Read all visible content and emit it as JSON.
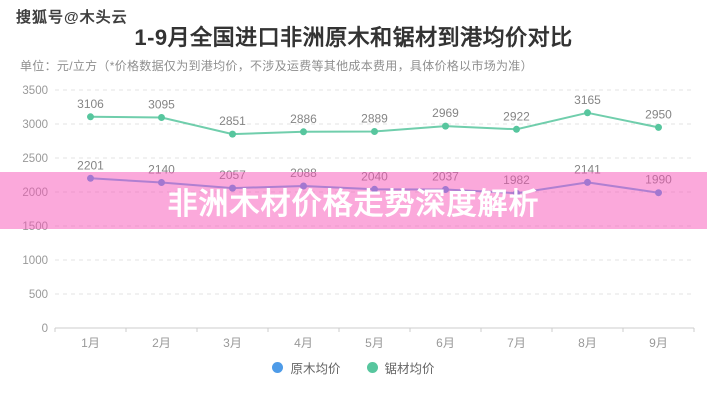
{
  "watermark": "搜狐号@木头云",
  "header": {
    "title": "1-9月全国进口非洲原木和锯材到港均价对比",
    "subtitle": "单位：元/立方（*价格数据仅为到港均价，不涉及运费等其他成本费用，具体价格以市场为准）"
  },
  "overlay_banner": {
    "text": "非洲木材价格走势深度解析",
    "background": "rgba(247,84,184,0.5)",
    "text_color": "#ffffff"
  },
  "chart_data": {
    "type": "line",
    "title": "1-9月全国进口非洲原木和锯材到港均价对比",
    "unit": "元/立方",
    "categories": [
      "1月",
      "2月",
      "3月",
      "4月",
      "5月",
      "6月",
      "7月",
      "8月",
      "9月"
    ],
    "series": [
      {
        "name": "原木均价",
        "color": "#4E9BE8",
        "values": [
          2201,
          2140,
          2057,
          2088,
          2040,
          2037,
          1982,
          2141,
          1990
        ]
      },
      {
        "name": "锯材均价",
        "color": "#57C69E",
        "values": [
          3106,
          3095,
          2851,
          2886,
          2889,
          2969,
          2922,
          3165,
          2950
        ]
      }
    ],
    "ylim": [
      0,
      3500
    ],
    "ytick_step": 500,
    "grid": true,
    "grid_style": "dashed",
    "legend_position": "bottom",
    "label_color": "#858585",
    "axis_label_color": "#999999"
  }
}
